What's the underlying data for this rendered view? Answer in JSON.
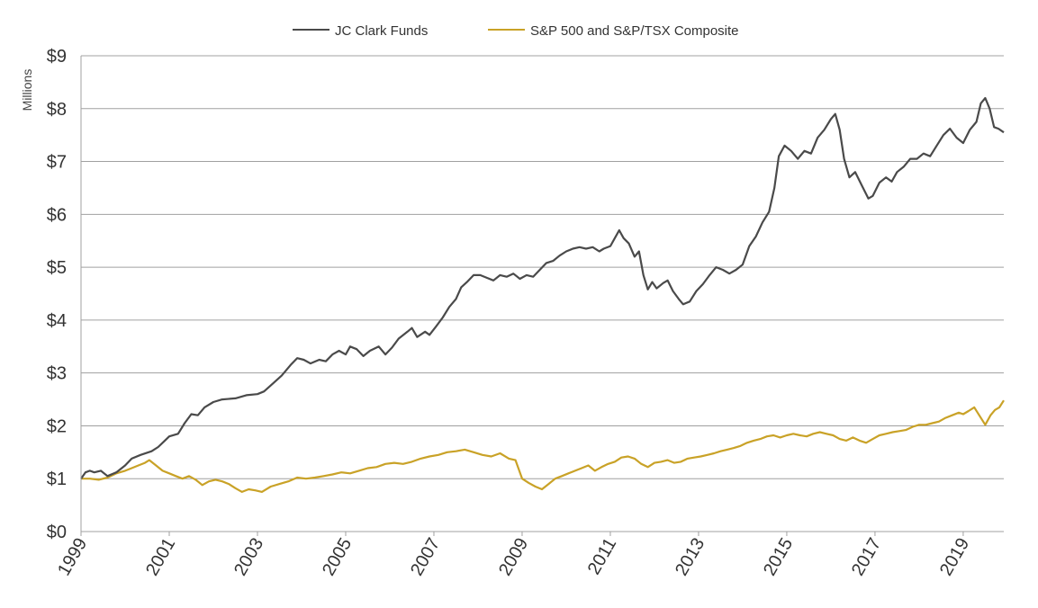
{
  "chart_data": {
    "type": "line",
    "title": "",
    "xlabel": "",
    "ylabel": "Millions",
    "ylim": [
      0,
      9
    ],
    "xlim": [
      1999,
      2019.92
    ],
    "grid": true,
    "legend_position": "top-center",
    "y_ticks": [
      {
        "value": 0,
        "label": "$0"
      },
      {
        "value": 1,
        "label": "$1"
      },
      {
        "value": 2,
        "label": "$2"
      },
      {
        "value": 3,
        "label": "$3"
      },
      {
        "value": 4,
        "label": "$4"
      },
      {
        "value": 5,
        "label": "$5"
      },
      {
        "value": 6,
        "label": "$6"
      },
      {
        "value": 7,
        "label": "$7"
      },
      {
        "value": 8,
        "label": "$8"
      },
      {
        "value": 9,
        "label": "$9"
      }
    ],
    "x_ticks": [
      {
        "value": 1999,
        "label": "1999"
      },
      {
        "value": 2001,
        "label": "2001"
      },
      {
        "value": 2003,
        "label": "2003"
      },
      {
        "value": 2005,
        "label": "2005"
      },
      {
        "value": 2007,
        "label": "2007"
      },
      {
        "value": 2009,
        "label": "2009"
      },
      {
        "value": 2011,
        "label": "2011"
      },
      {
        "value": 2013,
        "label": "2013"
      },
      {
        "value": 2015,
        "label": "2015"
      },
      {
        "value": 2017,
        "label": "2017"
      },
      {
        "value": 2019,
        "label": "2019"
      }
    ],
    "series": [
      {
        "name": "JC Clark Funds",
        "color": "#4a4a4a",
        "points": [
          [
            1999.0,
            1.0
          ],
          [
            1999.1,
            1.12
          ],
          [
            1999.2,
            1.15
          ],
          [
            1999.3,
            1.12
          ],
          [
            1999.45,
            1.15
          ],
          [
            1999.6,
            1.05
          ],
          [
            1999.8,
            1.12
          ],
          [
            2000.0,
            1.25
          ],
          [
            2000.15,
            1.38
          ],
          [
            2000.35,
            1.45
          ],
          [
            2000.6,
            1.52
          ],
          [
            2000.75,
            1.6
          ],
          [
            2000.9,
            1.72
          ],
          [
            2001.0,
            1.8
          ],
          [
            2001.2,
            1.85
          ],
          [
            2001.35,
            2.05
          ],
          [
            2001.5,
            2.22
          ],
          [
            2001.65,
            2.2
          ],
          [
            2001.8,
            2.35
          ],
          [
            2002.0,
            2.45
          ],
          [
            2002.2,
            2.5
          ],
          [
            2002.5,
            2.52
          ],
          [
            2002.75,
            2.58
          ],
          [
            2003.0,
            2.6
          ],
          [
            2003.15,
            2.65
          ],
          [
            2003.35,
            2.8
          ],
          [
            2003.55,
            2.95
          ],
          [
            2003.75,
            3.15
          ],
          [
            2003.9,
            3.28
          ],
          [
            2004.05,
            3.25
          ],
          [
            2004.2,
            3.18
          ],
          [
            2004.4,
            3.25
          ],
          [
            2004.55,
            3.22
          ],
          [
            2004.7,
            3.35
          ],
          [
            2004.85,
            3.42
          ],
          [
            2005.0,
            3.35
          ],
          [
            2005.1,
            3.5
          ],
          [
            2005.25,
            3.45
          ],
          [
            2005.4,
            3.32
          ],
          [
            2005.55,
            3.42
          ],
          [
            2005.75,
            3.5
          ],
          [
            2005.9,
            3.35
          ],
          [
            2006.05,
            3.48
          ],
          [
            2006.2,
            3.65
          ],
          [
            2006.4,
            3.78
          ],
          [
            2006.5,
            3.85
          ],
          [
            2006.62,
            3.68
          ],
          [
            2006.8,
            3.78
          ],
          [
            2006.9,
            3.72
          ],
          [
            2007.05,
            3.88
          ],
          [
            2007.2,
            4.05
          ],
          [
            2007.35,
            4.25
          ],
          [
            2007.5,
            4.4
          ],
          [
            2007.62,
            4.62
          ],
          [
            2007.75,
            4.72
          ],
          [
            2007.9,
            4.85
          ],
          [
            2008.05,
            4.85
          ],
          [
            2008.2,
            4.8
          ],
          [
            2008.35,
            4.75
          ],
          [
            2008.5,
            4.85
          ],
          [
            2008.65,
            4.82
          ],
          [
            2008.8,
            4.88
          ],
          [
            2008.95,
            4.78
          ],
          [
            2009.1,
            4.85
          ],
          [
            2009.25,
            4.82
          ],
          [
            2009.4,
            4.95
          ],
          [
            2009.55,
            5.08
          ],
          [
            2009.7,
            5.12
          ],
          [
            2009.85,
            5.22
          ],
          [
            2010.0,
            5.3
          ],
          [
            2010.15,
            5.35
          ],
          [
            2010.3,
            5.38
          ],
          [
            2010.45,
            5.35
          ],
          [
            2010.6,
            5.38
          ],
          [
            2010.75,
            5.3
          ],
          [
            2010.85,
            5.35
          ],
          [
            2011.0,
            5.4
          ],
          [
            2011.1,
            5.55
          ],
          [
            2011.2,
            5.7
          ],
          [
            2011.3,
            5.55
          ],
          [
            2011.42,
            5.45
          ],
          [
            2011.55,
            5.2
          ],
          [
            2011.65,
            5.3
          ],
          [
            2011.75,
            4.85
          ],
          [
            2011.85,
            4.58
          ],
          [
            2011.95,
            4.72
          ],
          [
            2012.05,
            4.6
          ],
          [
            2012.2,
            4.7
          ],
          [
            2012.3,
            4.75
          ],
          [
            2012.42,
            4.55
          ],
          [
            2012.55,
            4.4
          ],
          [
            2012.65,
            4.3
          ],
          [
            2012.8,
            4.35
          ],
          [
            2012.95,
            4.55
          ],
          [
            2013.1,
            4.68
          ],
          [
            2013.25,
            4.85
          ],
          [
            2013.4,
            5.0
          ],
          [
            2013.55,
            4.95
          ],
          [
            2013.7,
            4.88
          ],
          [
            2013.85,
            4.95
          ],
          [
            2014.0,
            5.05
          ],
          [
            2014.15,
            5.4
          ],
          [
            2014.3,
            5.58
          ],
          [
            2014.45,
            5.85
          ],
          [
            2014.6,
            6.05
          ],
          [
            2014.72,
            6.5
          ],
          [
            2014.82,
            7.1
          ],
          [
            2014.95,
            7.3
          ],
          [
            2015.1,
            7.2
          ],
          [
            2015.25,
            7.05
          ],
          [
            2015.4,
            7.2
          ],
          [
            2015.55,
            7.15
          ],
          [
            2015.7,
            7.45
          ],
          [
            2015.85,
            7.6
          ],
          [
            2016.0,
            7.8
          ],
          [
            2016.1,
            7.9
          ],
          [
            2016.2,
            7.6
          ],
          [
            2016.3,
            7.05
          ],
          [
            2016.42,
            6.7
          ],
          [
            2016.55,
            6.8
          ],
          [
            2016.7,
            6.55
          ],
          [
            2016.85,
            6.3
          ],
          [
            2016.95,
            6.35
          ],
          [
            2017.1,
            6.6
          ],
          [
            2017.25,
            6.7
          ],
          [
            2017.38,
            6.62
          ],
          [
            2017.5,
            6.8
          ],
          [
            2017.65,
            6.9
          ],
          [
            2017.8,
            7.05
          ],
          [
            2017.95,
            7.05
          ],
          [
            2018.1,
            7.15
          ],
          [
            2018.25,
            7.1
          ],
          [
            2018.4,
            7.3
          ],
          [
            2018.55,
            7.5
          ],
          [
            2018.7,
            7.62
          ],
          [
            2018.85,
            7.45
          ],
          [
            2019.0,
            7.35
          ],
          [
            2019.15,
            7.6
          ],
          [
            2019.3,
            7.75
          ],
          [
            2019.4,
            8.1
          ],
          [
            2019.5,
            8.2
          ],
          [
            2019.6,
            8.0
          ],
          [
            2019.7,
            7.65
          ],
          [
            2019.8,
            7.62
          ],
          [
            2019.92,
            7.55
          ]
        ]
      },
      {
        "name": "S&P 500 and S&P/TSX Composite",
        "color": "#c9a227",
        "points": [
          [
            1999.0,
            1.0
          ],
          [
            1999.2,
            1.0
          ],
          [
            1999.4,
            0.98
          ],
          [
            1999.6,
            1.02
          ],
          [
            1999.8,
            1.1
          ],
          [
            2000.0,
            1.15
          ],
          [
            2000.15,
            1.2
          ],
          [
            2000.3,
            1.25
          ],
          [
            2000.45,
            1.3
          ],
          [
            2000.55,
            1.35
          ],
          [
            2000.7,
            1.25
          ],
          [
            2000.85,
            1.15
          ],
          [
            2001.0,
            1.1
          ],
          [
            2001.15,
            1.05
          ],
          [
            2001.3,
            1.0
          ],
          [
            2001.45,
            1.05
          ],
          [
            2001.6,
            0.98
          ],
          [
            2001.75,
            0.88
          ],
          [
            2001.9,
            0.95
          ],
          [
            2002.05,
            0.98
          ],
          [
            2002.2,
            0.95
          ],
          [
            2002.35,
            0.9
          ],
          [
            2002.5,
            0.82
          ],
          [
            2002.65,
            0.75
          ],
          [
            2002.8,
            0.8
          ],
          [
            2002.95,
            0.78
          ],
          [
            2003.1,
            0.75
          ],
          [
            2003.3,
            0.85
          ],
          [
            2003.5,
            0.9
          ],
          [
            2003.7,
            0.95
          ],
          [
            2003.9,
            1.02
          ],
          [
            2004.1,
            1.0
          ],
          [
            2004.3,
            1.02
          ],
          [
            2004.5,
            1.05
          ],
          [
            2004.7,
            1.08
          ],
          [
            2004.9,
            1.12
          ],
          [
            2005.1,
            1.1
          ],
          [
            2005.3,
            1.15
          ],
          [
            2005.5,
            1.2
          ],
          [
            2005.7,
            1.22
          ],
          [
            2005.9,
            1.28
          ],
          [
            2006.1,
            1.3
          ],
          [
            2006.3,
            1.28
          ],
          [
            2006.5,
            1.32
          ],
          [
            2006.7,
            1.38
          ],
          [
            2006.9,
            1.42
          ],
          [
            2007.1,
            1.45
          ],
          [
            2007.3,
            1.5
          ],
          [
            2007.5,
            1.52
          ],
          [
            2007.7,
            1.55
          ],
          [
            2007.9,
            1.5
          ],
          [
            2008.1,
            1.45
          ],
          [
            2008.3,
            1.42
          ],
          [
            2008.5,
            1.48
          ],
          [
            2008.7,
            1.38
          ],
          [
            2008.85,
            1.35
          ],
          [
            2009.0,
            1.0
          ],
          [
            2009.15,
            0.92
          ],
          [
            2009.3,
            0.85
          ],
          [
            2009.45,
            0.8
          ],
          [
            2009.6,
            0.9
          ],
          [
            2009.75,
            1.0
          ],
          [
            2009.9,
            1.05
          ],
          [
            2010.05,
            1.1
          ],
          [
            2010.2,
            1.15
          ],
          [
            2010.35,
            1.2
          ],
          [
            2010.5,
            1.25
          ],
          [
            2010.65,
            1.15
          ],
          [
            2010.8,
            1.22
          ],
          [
            2010.95,
            1.28
          ],
          [
            2011.1,
            1.32
          ],
          [
            2011.25,
            1.4
          ],
          [
            2011.4,
            1.42
          ],
          [
            2011.55,
            1.38
          ],
          [
            2011.7,
            1.28
          ],
          [
            2011.85,
            1.22
          ],
          [
            2012.0,
            1.3
          ],
          [
            2012.15,
            1.32
          ],
          [
            2012.3,
            1.35
          ],
          [
            2012.45,
            1.3
          ],
          [
            2012.6,
            1.32
          ],
          [
            2012.75,
            1.38
          ],
          [
            2012.9,
            1.4
          ],
          [
            2013.05,
            1.42
          ],
          [
            2013.2,
            1.45
          ],
          [
            2013.35,
            1.48
          ],
          [
            2013.5,
            1.52
          ],
          [
            2013.65,
            1.55
          ],
          [
            2013.8,
            1.58
          ],
          [
            2013.95,
            1.62
          ],
          [
            2014.1,
            1.68
          ],
          [
            2014.25,
            1.72
          ],
          [
            2014.4,
            1.75
          ],
          [
            2014.55,
            1.8
          ],
          [
            2014.7,
            1.82
          ],
          [
            2014.85,
            1.78
          ],
          [
            2015.0,
            1.82
          ],
          [
            2015.15,
            1.85
          ],
          [
            2015.3,
            1.82
          ],
          [
            2015.45,
            1.8
          ],
          [
            2015.6,
            1.85
          ],
          [
            2015.75,
            1.88
          ],
          [
            2015.9,
            1.85
          ],
          [
            2016.05,
            1.82
          ],
          [
            2016.2,
            1.75
          ],
          [
            2016.35,
            1.72
          ],
          [
            2016.5,
            1.78
          ],
          [
            2016.65,
            1.72
          ],
          [
            2016.8,
            1.68
          ],
          [
            2016.95,
            1.75
          ],
          [
            2017.1,
            1.82
          ],
          [
            2017.25,
            1.85
          ],
          [
            2017.4,
            1.88
          ],
          [
            2017.55,
            1.9
          ],
          [
            2017.7,
            1.92
          ],
          [
            2017.85,
            1.98
          ],
          [
            2018.0,
            2.02
          ],
          [
            2018.15,
            2.02
          ],
          [
            2018.3,
            2.05
          ],
          [
            2018.45,
            2.08
          ],
          [
            2018.6,
            2.15
          ],
          [
            2018.75,
            2.2
          ],
          [
            2018.9,
            2.25
          ],
          [
            2019.0,
            2.22
          ],
          [
            2019.12,
            2.28
          ],
          [
            2019.25,
            2.35
          ],
          [
            2019.38,
            2.18
          ],
          [
            2019.5,
            2.02
          ],
          [
            2019.62,
            2.2
          ],
          [
            2019.72,
            2.3
          ],
          [
            2019.82,
            2.35
          ],
          [
            2019.92,
            2.48
          ]
        ]
      }
    ]
  }
}
